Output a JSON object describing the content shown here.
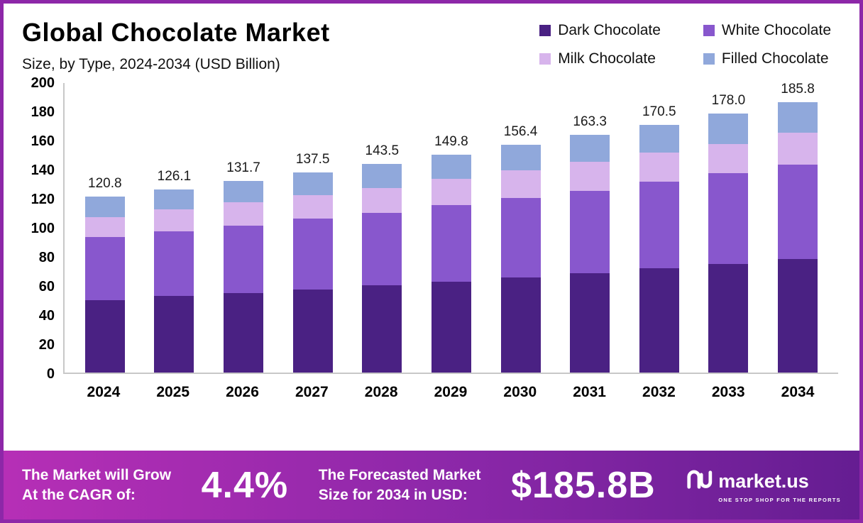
{
  "header": {
    "title": "Global Chocolate Market",
    "subtitle": "Size, by Type, 2024-2034 (USD Billion)"
  },
  "legend": [
    {
      "label": "Dark Chocolate",
      "color": "#4a2183"
    },
    {
      "label": "White Chocolate",
      "color": "#8857cd"
    },
    {
      "label": "Milk Chocolate",
      "color": "#d7b4ec"
    },
    {
      "label": "Filled Chocolate",
      "color": "#90a8db"
    }
  ],
  "chart_data": {
    "type": "bar",
    "stacked": true,
    "title": "Global Chocolate Market",
    "subtitle": "Size, by Type, 2024-2034 (USD Billion)",
    "xlabel": "",
    "ylabel": "USD Billion",
    "ylim": [
      0,
      200
    ],
    "ytick_interval": 20,
    "grid": false,
    "legend_position": "top-right",
    "categories": [
      "2024",
      "2025",
      "2026",
      "2027",
      "2028",
      "2029",
      "2030",
      "2031",
      "2032",
      "2033",
      "2034"
    ],
    "series": [
      {
        "name": "Dark Chocolate",
        "color": "#4a2183",
        "values": [
          50,
          52.5,
          54.5,
          57,
          60,
          62.5,
          65.5,
          68.5,
          71.5,
          74.5,
          78
        ]
      },
      {
        "name": "White Chocolate",
        "color": "#8857cd",
        "values": [
          43,
          44.5,
          46.5,
          49,
          50,
          52.5,
          54.5,
          56.5,
          59.5,
          62.5,
          65
        ]
      },
      {
        "name": "Milk Chocolate",
        "color": "#d7b4ec",
        "values": [
          14,
          15,
          16,
          16,
          17,
          18,
          19,
          20,
          20,
          20,
          22
        ]
      },
      {
        "name": "Filled Chocolate",
        "color": "#90a8db",
        "values": [
          13.8,
          14.1,
          14.7,
          15.5,
          16.5,
          16.8,
          17.4,
          18.3,
          19.5,
          21,
          20.8
        ]
      }
    ],
    "totals": [
      120.8,
      126.1,
      131.7,
      137.5,
      143.5,
      149.8,
      156.4,
      163.3,
      170.5,
      178.0,
      185.8
    ]
  },
  "banner": {
    "cagr_label_line1": "The Market will Grow",
    "cagr_label_line2": "At the CAGR of:",
    "cagr_value": "4.4%",
    "forecast_label_line1": "The Forecasted Market",
    "forecast_label_line2": "Size for 2034 in USD:",
    "forecast_value": "$185.8B",
    "brand_name": "market.us",
    "brand_tagline": "ONE STOP SHOP FOR THE REPORTS"
  }
}
